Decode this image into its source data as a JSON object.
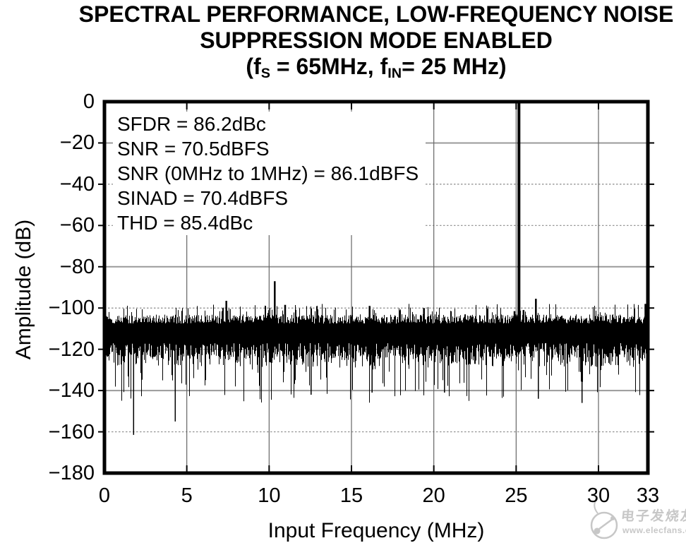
{
  "title": {
    "line1": "SPECTRAL PERFORMANCE, LOW-FREQUENCY NOISE",
    "line2": "SUPPRESSION MODE ENABLED",
    "line3_parts": {
      "p1": "(f",
      "sub1": "S",
      "p2": " = 65MHz, f",
      "sub2": "IN",
      "p3": "= 25 MHz)"
    }
  },
  "watermark": {
    "brand": "电子发烧友",
    "url": "www.elecfans.com",
    "color": "#c7c7c7"
  },
  "chart_data": {
    "type": "line",
    "subtype": "fft-spectrum",
    "title": "SPECTRAL PERFORMANCE, LOW-FREQUENCY NOISE SUPPRESSION MODE ENABLED (fS = 65MHz, fIN = 25 MHz)",
    "xlabel": "Input Frequency (MHz)",
    "ylabel": "Amplitude (dB)",
    "x_range": [
      0,
      33
    ],
    "y_range": [
      -180,
      0
    ],
    "x_ticks": [
      {
        "value": 0,
        "label": "0"
      },
      {
        "value": 5,
        "label": "5"
      },
      {
        "value": 10,
        "label": "10"
      },
      {
        "value": 15,
        "label": "15"
      },
      {
        "value": 20,
        "label": "20"
      },
      {
        "value": 25,
        "label": "25"
      },
      {
        "value": 30,
        "label": "30"
      },
      {
        "value": 33,
        "label": "33"
      }
    ],
    "y_ticks": [
      {
        "value": 0,
        "label": "0"
      },
      {
        "value": -20,
        "label": "−20"
      },
      {
        "value": -40,
        "label": "−40"
      },
      {
        "value": -60,
        "label": "−60"
      },
      {
        "value": -80,
        "label": "−80"
      },
      {
        "value": -100,
        "label": "−100"
      },
      {
        "value": -120,
        "label": "−120"
      },
      {
        "value": -140,
        "label": "−140"
      },
      {
        "value": -160,
        "label": "−160"
      },
      {
        "value": -180,
        "label": "−180"
      }
    ],
    "grid": {
      "vertical_at": [
        5,
        10,
        15,
        20,
        25,
        30
      ],
      "horizontal_solid_at": [
        -20,
        -80,
        -140
      ],
      "horizontal_dashed_at": [
        -40,
        -60,
        -100,
        -120,
        -160
      ],
      "solid_color": "#9a9a9a",
      "dashed_color": "#8a8a8a",
      "vertical_color": "#666666"
    },
    "annotations": [
      "SFDR = 86.2dBc",
      "SNR = 70.5dBFS",
      "SNR (0MHz to 1MHz) = 86.1dBFS",
      "SINAD = 70.4dBFS",
      "THD = 85.4dBc"
    ],
    "fundamental": {
      "freq_mhz": 25.17,
      "level_db": -0.8
    },
    "spurs": [
      {
        "freq_mhz": 7.4,
        "level_db": -96.5
      },
      {
        "freq_mhz": 10.34,
        "level_db": -87
      },
      {
        "freq_mhz": 10.97,
        "level_db": -98.5
      },
      {
        "freq_mhz": 16.1,
        "level_db": -99
      },
      {
        "freq_mhz": 19.4,
        "level_db": -100
      },
      {
        "freq_mhz": 24.9,
        "level_db": -101.5
      },
      {
        "freq_mhz": 25.45,
        "level_db": -101
      },
      {
        "freq_mhz": 26.2,
        "level_db": -95.5
      },
      {
        "freq_mhz": 32.85,
        "level_db": -98
      }
    ],
    "deep_nulls": [
      {
        "freq_mhz": 1.77,
        "level_db": -161.5
      },
      {
        "freq_mhz": 4.3,
        "level_db": -155
      },
      {
        "freq_mhz": 12.55,
        "level_db": -142
      },
      {
        "freq_mhz": 16.25,
        "level_db": -141
      },
      {
        "freq_mhz": 20.65,
        "level_db": -141
      },
      {
        "freq_mhz": 26.35,
        "level_db": -144
      },
      {
        "freq_mhz": 29.0,
        "level_db": -146
      }
    ],
    "noise_floor": {
      "seed": 9,
      "mean_db": -115,
      "core_top_db": [
        -103,
        -107.5
      ],
      "core_bottom_db": [
        -117,
        -124
      ],
      "up_spike": {
        "prob": 0.1,
        "range_db": [
          -98,
          -102.5
        ]
      },
      "down_spike": {
        "prob": 0.14,
        "range_db": [
          -127,
          -146
        ]
      },
      "mid_down": {
        "prob": 0.31,
        "range_db": [
          -122,
          -128.5
        ]
      }
    },
    "trace_color": "#000000",
    "frame_color": "#000000"
  }
}
